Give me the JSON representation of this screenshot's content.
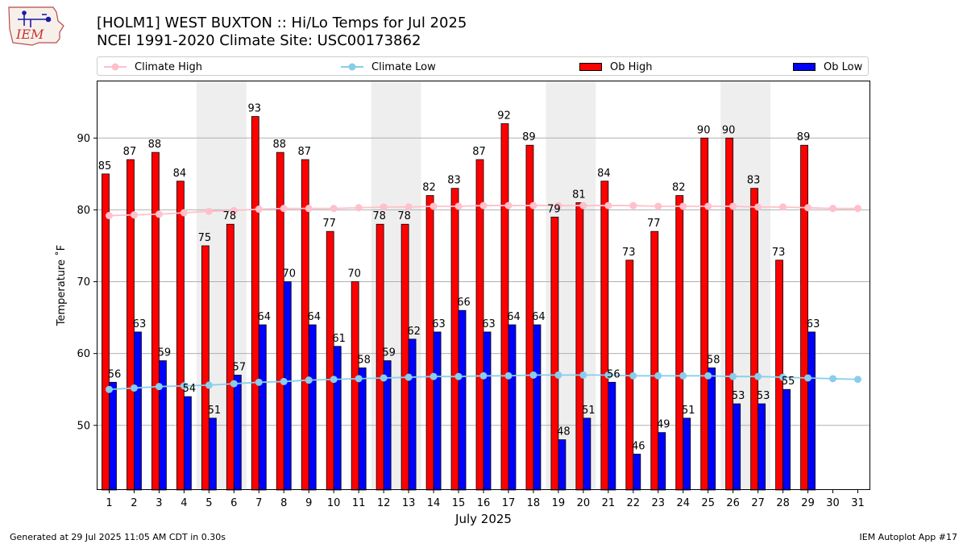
{
  "header": {
    "logo_text": "IEM",
    "title_line1": "[HOLM1] WEST BUXTON :: Hi/Lo Temps for Jul 2025",
    "title_line2": "NCEI 1991-2020 Climate Site: USC00173862"
  },
  "legend": {
    "position": "top",
    "items": [
      {
        "label": "Climate High",
        "kind": "line",
        "color": "#FFC0CB"
      },
      {
        "label": "Climate Low",
        "kind": "line",
        "color": "#87CEEB"
      },
      {
        "label": "Ob High",
        "kind": "bar",
        "color": "#FF0000"
      },
      {
        "label": "Ob Low",
        "kind": "bar",
        "color": "#0000FF"
      }
    ]
  },
  "chart_data": {
    "type": "bar",
    "xlabel": "July 2025",
    "ylabel": "Temperature $^\\circ$F",
    "ylabel_display": "Temperature ˚F",
    "ylim": [
      41,
      98
    ],
    "yticks": [
      50,
      60,
      70,
      80,
      90
    ],
    "grid": "horizontal",
    "categories": [
      1,
      2,
      3,
      4,
      5,
      6,
      7,
      8,
      9,
      10,
      11,
      12,
      13,
      14,
      15,
      16,
      17,
      18,
      19,
      20,
      21,
      22,
      23,
      24,
      25,
      26,
      27,
      28,
      29,
      30,
      31
    ],
    "weekend_shading": [
      [
        5,
        6
      ],
      [
        12,
        13
      ],
      [
        19,
        20
      ],
      [
        26,
        27
      ]
    ],
    "series": [
      {
        "name": "Ob High",
        "type": "bar",
        "color": "#FF0000",
        "values": [
          85,
          87,
          88,
          84,
          75,
          78,
          93,
          88,
          87,
          77,
          70,
          78,
          78,
          82,
          83,
          87,
          92,
          89,
          79,
          81,
          84,
          73,
          77,
          82,
          90,
          90,
          83,
          73,
          89,
          null,
          null
        ]
      },
      {
        "name": "Ob Low",
        "type": "bar",
        "color": "#0000FF",
        "values": [
          56,
          63,
          59,
          54,
          51,
          57,
          64,
          70,
          64,
          61,
          58,
          59,
          62,
          63,
          66,
          63,
          64,
          64,
          48,
          51,
          56,
          46,
          49,
          51,
          58,
          53,
          53,
          55,
          63,
          null,
          null
        ]
      },
      {
        "name": "Climate High",
        "type": "line",
        "color": "#FFC0CB",
        "values": [
          79.2,
          79.3,
          79.4,
          79.6,
          79.8,
          79.9,
          80.1,
          80.2,
          80.2,
          80.2,
          80.3,
          80.4,
          80.4,
          80.5,
          80.5,
          80.6,
          80.6,
          80.6,
          80.6,
          80.6,
          80.6,
          80.6,
          80.5,
          80.5,
          80.5,
          80.5,
          80.4,
          80.4,
          80.3,
          80.2,
          80.2
        ]
      },
      {
        "name": "Climate Low",
        "type": "line",
        "color": "#87CEEB",
        "values": [
          55.0,
          55.2,
          55.4,
          55.5,
          55.6,
          55.8,
          56.0,
          56.1,
          56.3,
          56.4,
          56.5,
          56.6,
          56.7,
          56.8,
          56.8,
          56.9,
          56.9,
          57.0,
          57.0,
          57.0,
          57.0,
          56.9,
          56.9,
          56.9,
          56.9,
          56.8,
          56.8,
          56.7,
          56.6,
          56.5,
          56.4
        ]
      }
    ]
  },
  "footer": {
    "left": "Generated at 29 Jul 2025 11:05 AM CDT in 0.30s",
    "right": "IEM Autoplot App #17"
  }
}
